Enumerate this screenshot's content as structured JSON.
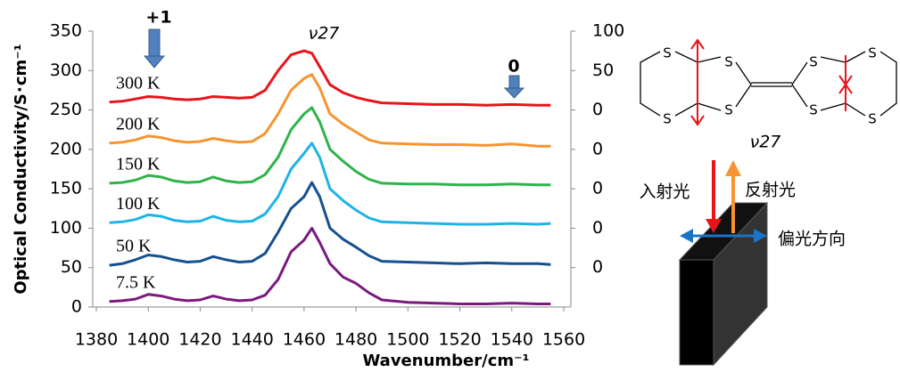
{
  "chart_data": {
    "type": "line",
    "xlabel": "Wavenumber/cm⁻¹",
    "ylabel": "Optical Conductivity/S･cm⁻¹",
    "x": [
      1385,
      1390,
      1395,
      1400,
      1405,
      1410,
      1415,
      1420,
      1425,
      1430,
      1435,
      1440,
      1445,
      1450,
      1455,
      1460,
      1463,
      1466,
      1470,
      1475,
      1480,
      1485,
      1490,
      1500,
      1510,
      1520,
      1530,
      1540,
      1550,
      1555
    ],
    "series": [
      {
        "name": "300 K",
        "color": "#e8141b",
        "values": [
          260,
          261,
          264,
          267,
          266,
          264,
          263,
          264,
          267,
          266,
          265,
          266,
          275,
          300,
          320,
          325,
          322,
          305,
          282,
          272,
          266,
          262,
          259,
          258,
          257,
          257,
          256,
          257,
          256,
          256
        ]
      },
      {
        "name": "200 K",
        "color": "#f79431",
        "values": [
          208,
          209,
          212,
          217,
          215,
          211,
          209,
          210,
          214,
          211,
          209,
          210,
          220,
          245,
          275,
          290,
          295,
          278,
          245,
          232,
          222,
          212,
          208,
          207,
          206,
          206,
          205,
          207,
          204,
          204
        ]
      },
      {
        "name": "150 K",
        "color": "#2fb34a",
        "values": [
          157,
          158,
          161,
          167,
          165,
          160,
          158,
          159,
          165,
          160,
          158,
          159,
          168,
          190,
          225,
          245,
          253,
          235,
          200,
          185,
          172,
          162,
          157,
          156,
          156,
          155,
          155,
          156,
          155,
          155
        ]
      },
      {
        "name": "100 K",
        "color": "#1fb3e8",
        "values": [
          107,
          108,
          111,
          117,
          115,
          110,
          108,
          109,
          115,
          110,
          108,
          109,
          118,
          140,
          175,
          195,
          208,
          190,
          150,
          135,
          123,
          113,
          108,
          107,
          106,
          105,
          105,
          106,
          105,
          106
        ]
      },
      {
        "name": "50 K",
        "color": "#16508f",
        "values": [
          53,
          55,
          60,
          66,
          64,
          60,
          57,
          58,
          64,
          60,
          57,
          58,
          68,
          95,
          125,
          140,
          158,
          140,
          100,
          86,
          76,
          65,
          58,
          57,
          56,
          55,
          56,
          55,
          55,
          54
        ]
      },
      {
        "name": "7.5 K",
        "color": "#7b1a7e",
        "values": [
          7,
          8,
          10,
          16,
          14,
          10,
          8,
          9,
          14,
          10,
          8,
          9,
          15,
          35,
          70,
          85,
          100,
          82,
          55,
          38,
          30,
          18,
          9,
          6,
          5,
          4,
          4,
          5,
          4,
          4
        ]
      }
    ],
    "xlim": [
      1380,
      1560
    ],
    "xticks": [
      1380,
      1400,
      1420,
      1440,
      1460,
      1480,
      1500,
      1520,
      1540,
      1560
    ],
    "ylim": [
      0,
      350
    ],
    "yticks": [
      0,
      50,
      100,
      150,
      200,
      250,
      300,
      350
    ],
    "y2lim": [
      -250,
      100
    ],
    "y2ticks": [
      100,
      50,
      0,
      {
        "value": -50,
        "label": "0"
      },
      {
        "value": -100,
        "label": "0"
      },
      {
        "value": -150,
        "label": "0"
      },
      {
        "value": -200,
        "label": "0"
      }
    ],
    "grid": false,
    "annotations": [
      "+1",
      "0"
    ],
    "peak_label": "ν27"
  },
  "diagram": {
    "atoms": [
      "S",
      "S",
      "S",
      "S",
      "S",
      "S",
      "S",
      "S"
    ],
    "mode": "ν27",
    "incident": "入射光",
    "reflected": "反射光",
    "polarization": "偏光方向"
  }
}
